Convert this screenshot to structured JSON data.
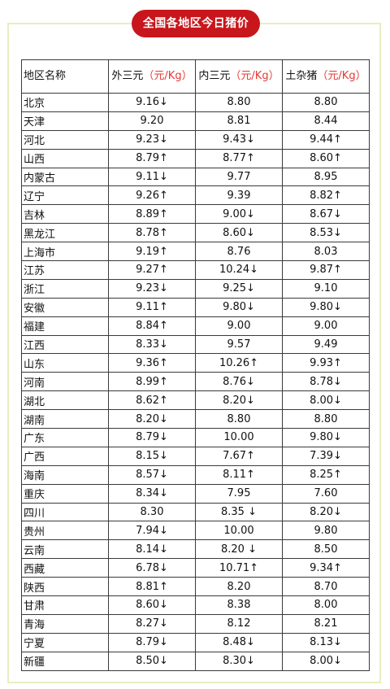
{
  "title": "全国各地区今日猪价",
  "colors": {
    "banner": "#c8161d",
    "up": "#e31a1c",
    "down": "#4a9a3a",
    "unit": "#e53935",
    "frame": "#e6efc0"
  },
  "headers": {
    "region": "地区名称",
    "col1": {
      "name": "外三元",
      "unit": "（元/Kg）"
    },
    "col2": {
      "name": "内三元",
      "unit": "（元/Kg）"
    },
    "col3": {
      "name": "土杂猪",
      "unit": "（元/Kg）"
    }
  },
  "rows": [
    {
      "region": "北京",
      "cells": [
        {
          "v": "9.16↓",
          "t": "down"
        },
        {
          "v": "8.80",
          "t": "flat"
        },
        {
          "v": "8.80",
          "t": "flat"
        }
      ]
    },
    {
      "region": "天津",
      "cells": [
        {
          "v": "9.20",
          "t": "flat"
        },
        {
          "v": "8.81",
          "t": "flat"
        },
        {
          "v": "8.44",
          "t": "flat"
        }
      ]
    },
    {
      "region": "河北",
      "cells": [
        {
          "v": "9.23↓",
          "t": "down"
        },
        {
          "v": "9.43↓",
          "t": "down"
        },
        {
          "v": "9.44↑",
          "t": "up"
        }
      ]
    },
    {
      "region": "山西",
      "cells": [
        {
          "v": "8.79↑",
          "t": "up"
        },
        {
          "v": "8.77↑",
          "t": "up"
        },
        {
          "v": "8.60↑",
          "t": "up"
        }
      ]
    },
    {
      "region": "内蒙古",
      "cells": [
        {
          "v": "9.11↓",
          "t": "down"
        },
        {
          "v": "9.77",
          "t": "flat"
        },
        {
          "v": "8.95",
          "t": "flat"
        }
      ]
    },
    {
      "region": "辽宁",
      "cells": [
        {
          "v": "9.26↑",
          "t": "up"
        },
        {
          "v": "9.39",
          "t": "flat"
        },
        {
          "v": "8.82↑",
          "t": "up"
        }
      ]
    },
    {
      "region": "吉林",
      "cells": [
        {
          "v": "8.89↑",
          "t": "up"
        },
        {
          "v": "9.00↓",
          "t": "down"
        },
        {
          "v": "8.67↓",
          "t": "down"
        }
      ]
    },
    {
      "region": "黑龙江",
      "cells": [
        {
          "v": "8.78↑",
          "t": "up"
        },
        {
          "v": "8.60↓",
          "t": "down"
        },
        {
          "v": "8.53↓",
          "t": "down"
        }
      ]
    },
    {
      "region": "上海市",
      "cells": [
        {
          "v": "9.19↑",
          "t": "up"
        },
        {
          "v": "8.76",
          "t": "flat"
        },
        {
          "v": "8.03",
          "t": "flat"
        }
      ]
    },
    {
      "region": "江苏",
      "cells": [
        {
          "v": "9.27↑",
          "t": "up"
        },
        {
          "v": "10.24↓",
          "t": "down"
        },
        {
          "v": "9.87↑",
          "t": "up"
        }
      ]
    },
    {
      "region": "浙江",
      "cells": [
        {
          "v": "9.23↓",
          "t": "down"
        },
        {
          "v": "9.25↓",
          "t": "down"
        },
        {
          "v": "9.10",
          "t": "flat"
        }
      ]
    },
    {
      "region": "安徽",
      "cells": [
        {
          "v": "9.11↑",
          "t": "up"
        },
        {
          "v": "9.80↓",
          "t": "down"
        },
        {
          "v": "9.80↓",
          "t": "down"
        }
      ]
    },
    {
      "region": "福建",
      "cells": [
        {
          "v": "8.84↑",
          "t": "up"
        },
        {
          "v": "9.00",
          "t": "flat"
        },
        {
          "v": "9.00",
          "t": "flat"
        }
      ]
    },
    {
      "region": "江西",
      "cells": [
        {
          "v": "8.33↓",
          "t": "down"
        },
        {
          "v": "9.57",
          "t": "flat"
        },
        {
          "v": "9.49",
          "t": "flat"
        }
      ]
    },
    {
      "region": "山东",
      "cells": [
        {
          "v": "9.36↑",
          "t": "up"
        },
        {
          "v": "10.26↑",
          "t": "up"
        },
        {
          "v": "9.93↑",
          "t": "up"
        }
      ]
    },
    {
      "region": "河南",
      "cells": [
        {
          "v": "8.99↑",
          "t": "up"
        },
        {
          "v": "8.76↓",
          "t": "down"
        },
        {
          "v": "8.78↓",
          "t": "down"
        }
      ]
    },
    {
      "region": "湖北",
      "cells": [
        {
          "v": "8.62↑",
          "t": "up"
        },
        {
          "v": "8.20↓",
          "t": "down"
        },
        {
          "v": "8.00↓",
          "t": "down"
        }
      ]
    },
    {
      "region": "湖南",
      "cells": [
        {
          "v": "8.20↓",
          "t": "down"
        },
        {
          "v": "8.80",
          "t": "flat"
        },
        {
          "v": "8.80",
          "t": "flat"
        }
      ]
    },
    {
      "region": "广东",
      "cells": [
        {
          "v": "8.79↓",
          "t": "down"
        },
        {
          "v": "10.00",
          "t": "flat"
        },
        {
          "v": "9.80↓",
          "t": "down"
        }
      ]
    },
    {
      "region": "广西",
      "cells": [
        {
          "v": "8.15↓",
          "t": "down"
        },
        {
          "v": "7.67↑",
          "t": "up"
        },
        {
          "v": "7.39↓",
          "t": "down"
        }
      ]
    },
    {
      "region": "海南",
      "cells": [
        {
          "v": "8.57↓",
          "t": "down"
        },
        {
          "v": "8.11↑",
          "t": "up"
        },
        {
          "v": "8.25↑",
          "t": "up"
        }
      ]
    },
    {
      "region": "重庆",
      "cells": [
        {
          "v": "8.34↓",
          "t": "down"
        },
        {
          "v": "7.95",
          "t": "flat"
        },
        {
          "v": "7.60",
          "t": "flat"
        }
      ]
    },
    {
      "region": "四川",
      "cells": [
        {
          "v": "8.30",
          "t": "flat"
        },
        {
          "v": "8.35 ↓",
          "t": "down"
        },
        {
          "v": "8.20↓",
          "t": "down"
        }
      ]
    },
    {
      "region": "贵州",
      "cells": [
        {
          "v": "7.94↓",
          "t": "down"
        },
        {
          "v": "10.00",
          "t": "flat"
        },
        {
          "v": "9.80",
          "t": "flat"
        }
      ]
    },
    {
      "region": "云南",
      "cells": [
        {
          "v": "8.14↓",
          "t": "down"
        },
        {
          "v": "8.20 ↓",
          "t": "down"
        },
        {
          "v": "8.50",
          "t": "flat"
        }
      ]
    },
    {
      "region": "西藏",
      "cells": [
        {
          "v": "6.78↓",
          "t": "down"
        },
        {
          "v": "10.71↑",
          "t": "up"
        },
        {
          "v": "9.34↑",
          "t": "up"
        }
      ]
    },
    {
      "region": "陕西",
      "cells": [
        {
          "v": "8.81↑",
          "t": "up"
        },
        {
          "v": "8.20",
          "t": "flat"
        },
        {
          "v": "8.70",
          "t": "flat"
        }
      ]
    },
    {
      "region": "甘肃",
      "cells": [
        {
          "v": "8.60↓",
          "t": "down"
        },
        {
          "v": "8.38",
          "t": "flat"
        },
        {
          "v": "8.00",
          "t": "flat"
        }
      ]
    },
    {
      "region": "青海",
      "cells": [
        {
          "v": "8.27↓",
          "t": "down"
        },
        {
          "v": "8.12",
          "t": "flat"
        },
        {
          "v": "8.21",
          "t": "flat"
        }
      ]
    },
    {
      "region": "宁夏",
      "cells": [
        {
          "v": "8.79↓",
          "t": "down"
        },
        {
          "v": "8.48↓",
          "t": "down"
        },
        {
          "v": "8.13↓",
          "t": "down"
        }
      ]
    },
    {
      "region": "新疆",
      "cells": [
        {
          "v": "8.50↓",
          "t": "down"
        },
        {
          "v": "8.30↓",
          "t": "down"
        },
        {
          "v": "8.00↓",
          "t": "down"
        }
      ]
    }
  ]
}
